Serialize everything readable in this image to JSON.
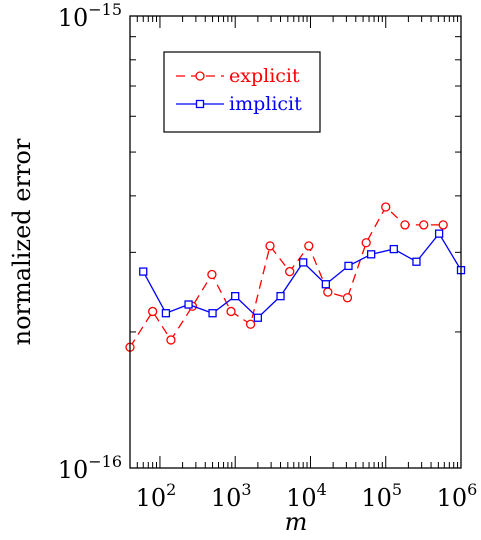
{
  "chart_data": {
    "type": "line",
    "title": "",
    "xlabel": "m",
    "ylabel": "normalized error",
    "xscale": "log",
    "yscale": "log",
    "xlim": [
      40,
      1000000
    ],
    "ylim": [
      1e-16,
      1e-15
    ],
    "x_ticks": [
      {
        "value": 100,
        "base": "10",
        "exp": "2"
      },
      {
        "value": 1000,
        "base": "10",
        "exp": "3"
      },
      {
        "value": 10000,
        "base": "10",
        "exp": "4"
      },
      {
        "value": 100000,
        "base": "10",
        "exp": "5"
      },
      {
        "value": 1000000,
        "base": "10",
        "exp": "6"
      }
    ],
    "y_ticks": [
      {
        "value": 1e-16,
        "base": "10",
        "exp": "−16"
      },
      {
        "value": 1e-15,
        "base": "10",
        "exp": "−15"
      }
    ],
    "grid": false,
    "legend_position": "top-left",
    "series": [
      {
        "name": "explicit",
        "color": "#ff0000",
        "marker": "circle",
        "line": "dashed",
        "x": [
          40,
          80,
          140,
          270,
          490,
          880,
          1600,
          2900,
          5300,
          9500,
          17000,
          31000,
          55000,
          100000,
          180000,
          320000,
          580000
        ],
        "y": [
          1.85e-16,
          2.22e-16,
          1.92e-16,
          2.28e-16,
          2.68e-16,
          2.22e-16,
          2.08e-16,
          3.1e-16,
          2.72e-16,
          3.1e-16,
          2.45e-16,
          2.38e-16,
          3.15e-16,
          3.78e-16,
          3.45e-16,
          3.45e-16,
          3.45e-16
        ]
      },
      {
        "name": "implicit",
        "color": "#0000ff",
        "marker": "square",
        "line": "solid",
        "x": [
          60,
          120,
          240,
          500,
          1000,
          2000,
          4000,
          8000,
          16000,
          32000,
          64000,
          128000,
          256000,
          512000,
          1000000
        ],
        "y": [
          2.72e-16,
          2.2e-16,
          2.3e-16,
          2.2e-16,
          2.4e-16,
          2.15e-16,
          2.4e-16,
          2.85e-16,
          2.55e-16,
          2.8e-16,
          2.97e-16,
          3.05e-16,
          2.86e-16,
          3.3e-16,
          2.74e-16
        ]
      }
    ]
  }
}
